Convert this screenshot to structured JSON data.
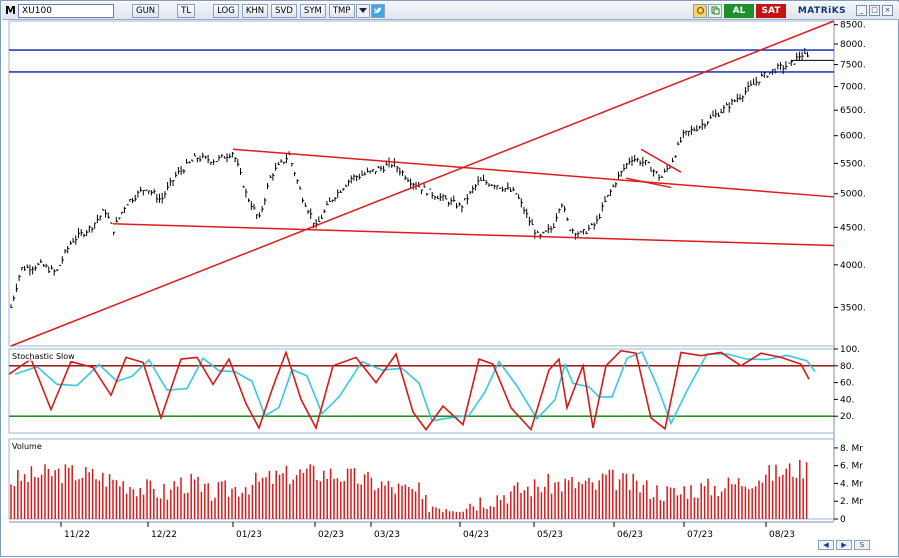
{
  "toolbar": {
    "symbol": "XU100",
    "buttons": [
      "GUN",
      "TL",
      "LOG",
      "KHN",
      "SVD",
      "SYM",
      "TMP"
    ],
    "al_label": "AL",
    "sat_label": "SAT",
    "brand": "MATRiKS",
    "icons": [
      "refresh-icon",
      "copy-icon",
      "dropdown-arrow-icon",
      "twitter-bird-icon"
    ]
  },
  "price_panel": {
    "y_ticks": [
      "8500.",
      "8000.",
      "7500.",
      "7000.",
      "6500.",
      "6000.",
      "5500.",
      "5000.",
      "4500.",
      "4000.",
      "3500."
    ],
    "horizontal_levels": [
      7850,
      7330
    ],
    "colors": {
      "bars": "#000000",
      "trendlines": "#e01b1b",
      "levels": "#0a1cb0"
    }
  },
  "stochastic_panel": {
    "title": "Stochastic Slow",
    "y_ticks": [
      "100.",
      "80.",
      "60.",
      "40.",
      "20."
    ],
    "levels": [
      80,
      20
    ],
    "colors": {
      "k_line": "#d41a1a",
      "d_line": "#36c8e0",
      "upper": "#8b0000",
      "lower": "#008000"
    }
  },
  "volume_panel": {
    "title": "Volume",
    "y_ticks": [
      "8. Mr",
      "6. Mr",
      "4. Mr",
      "2. Mr",
      "0"
    ],
    "color": "#d41a1a"
  },
  "x_axis": {
    "labels": [
      "11/22",
      "12/22",
      "01/23",
      "02/23",
      "03/23",
      "04/23",
      "05/23",
      "06/23",
      "07/23",
      "08/23"
    ]
  },
  "chart_data": [
    {
      "type": "line",
      "title": "XU100",
      "note": "daily price bars, approximate closes",
      "x": [
        "11/22",
        "12/22",
        "01/23",
        "02/23",
        "03/23",
        "04/23",
        "05/23",
        "06/23",
        "07/23",
        "08/23"
      ],
      "series": [
        {
          "name": "XU100",
          "values": [
            4400,
            5000,
            5600,
            5000,
            5300,
            5000,
            4400,
            5400,
            6700,
            7700
          ]
        }
      ],
      "ylim": [
        3100,
        8600
      ]
    },
    {
      "type": "line",
      "title": "Stochastic Slow",
      "ylim": [
        0,
        100
      ],
      "levels": [
        80,
        20
      ]
    },
    {
      "type": "bar",
      "title": "Volume",
      "ylim": [
        0,
        9
      ],
      "ylabel": "Mr"
    }
  ]
}
